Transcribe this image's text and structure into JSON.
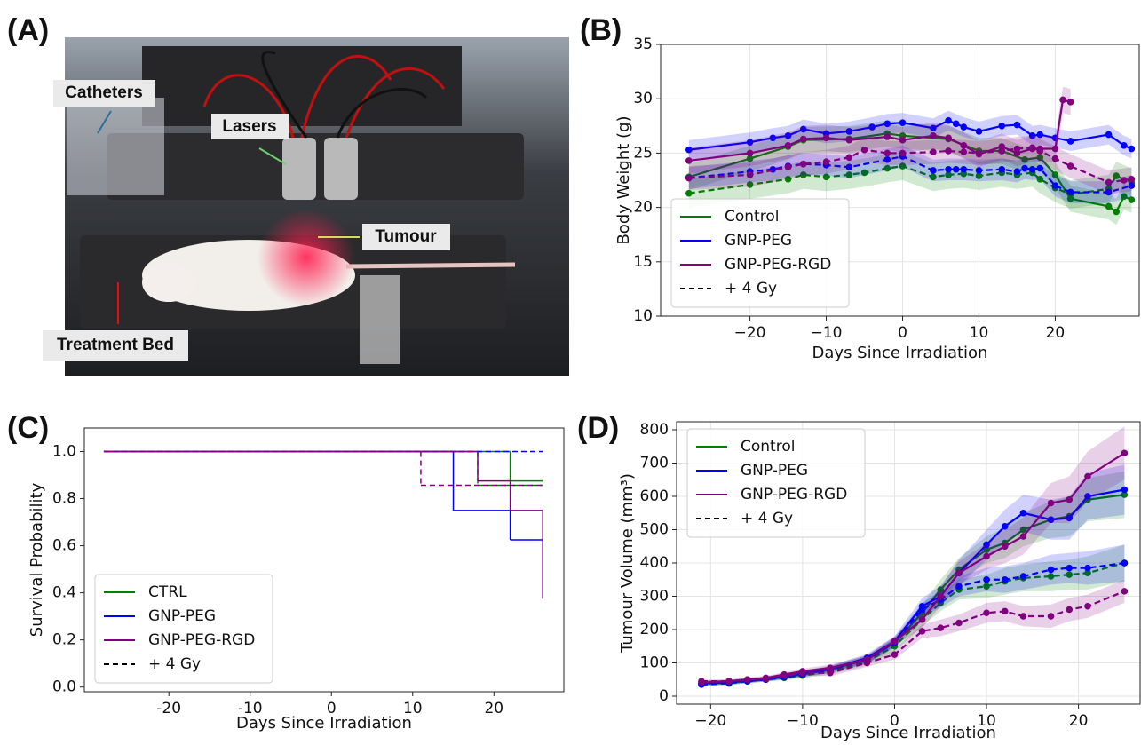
{
  "panel_labels": [
    "(A)",
    "(B)",
    "(C)",
    "(D)"
  ],
  "photo": {
    "labels": [
      "Catheters",
      "Lasers",
      "Tumour",
      "Treatment Bed"
    ]
  },
  "chart_data": [
    {
      "type": "line",
      "xlabel": "Days Since Irradiation",
      "ylabel": "Body Weight (g)",
      "xlim": [
        -31.7,
        31
      ],
      "ylim": [
        10,
        35
      ],
      "xticks": [
        {
          "value": -20,
          "label": "−20"
        },
        {
          "value": -10,
          "label": "−10"
        },
        0,
        10,
        20
      ],
      "yticks": [
        10,
        15,
        20,
        25,
        30,
        35
      ],
      "grid": true,
      "markers": true,
      "legend_loc": "lower left",
      "legend": [
        {
          "label": "Control",
          "color": "#008000",
          "dash": false
        },
        {
          "label": "GNP-PEG",
          "color": "#0000ff",
          "dash": false
        },
        {
          "label": "GNP-PEG-RGD",
          "color": "#800080",
          "dash": false
        },
        {
          "label": "+ 4 Gy",
          "color": "#000000",
          "dash": true
        }
      ],
      "series": [
        {
          "name": "Control",
          "color": "#008000",
          "dash": false,
          "error": 1.2,
          "x": [
            -28,
            -20,
            -15,
            -13,
            -7,
            -2,
            0,
            6,
            10,
            13,
            16,
            18,
            20,
            22,
            27,
            28,
            29,
            30
          ],
          "values": [
            22.8,
            24.5,
            25.6,
            26.2,
            26.3,
            26.8,
            26.6,
            26.3,
            25.2,
            25.2,
            24.4,
            24.6,
            23.0,
            20.8,
            20.1,
            19.6,
            21.0,
            20.7
          ]
        },
        {
          "name": "Control",
          "color": "#008000",
          "dash": true,
          "error": 1.3,
          "x": [
            -28,
            -20,
            -15,
            -13,
            -10,
            -7,
            -5,
            -2,
            0,
            4,
            6,
            8,
            10,
            13,
            15,
            17,
            18,
            20,
            22,
            27,
            28,
            30
          ],
          "values": [
            21.3,
            22.1,
            22.6,
            23.0,
            22.8,
            23.0,
            23.2,
            23.6,
            23.8,
            22.8,
            23.0,
            23.1,
            22.9,
            23.2,
            23.0,
            23.2,
            22.6,
            21.8,
            21.2,
            21.7,
            22.9,
            22.3
          ]
        },
        {
          "name": "GNP-PEG",
          "color": "#0000ff",
          "dash": false,
          "error": 0.9,
          "x": [
            -28,
            -20,
            -17,
            -15,
            -13,
            -10,
            -7,
            -4,
            -2,
            0,
            4,
            6,
            7,
            8,
            10,
            13,
            15,
            17,
            18,
            20,
            22,
            27,
            29,
            30
          ],
          "values": [
            25.3,
            26.0,
            26.4,
            26.6,
            27.2,
            26.8,
            27.0,
            27.4,
            27.7,
            27.8,
            27.3,
            28.0,
            27.7,
            27.4,
            27.0,
            27.5,
            27.6,
            26.6,
            26.7,
            26.4,
            26.1,
            26.7,
            25.7,
            25.4
          ]
        },
        {
          "name": "GNP-PEG",
          "color": "#0000ff",
          "dash": true,
          "error": 1.0,
          "x": [
            -28,
            -20,
            -17,
            -15,
            -13,
            -10,
            -7,
            -2,
            0,
            4,
            6,
            7,
            8,
            10,
            13,
            15,
            16,
            17,
            18,
            20,
            22,
            27,
            30
          ],
          "values": [
            22.7,
            23.3,
            23.5,
            23.8,
            24.0,
            23.9,
            23.7,
            24.4,
            24.7,
            23.4,
            23.5,
            23.5,
            23.5,
            23.4,
            23.5,
            23.3,
            23.6,
            23.5,
            23.6,
            22.0,
            21.4,
            21.4,
            22.0
          ]
        },
        {
          "name": "GNP-PEG-RGD",
          "color": "#800080",
          "dash": false,
          "error": 1.2,
          "x": [
            -28,
            -20,
            -15,
            -13,
            -10,
            -7,
            -2,
            0,
            4,
            6,
            8,
            10,
            13,
            15,
            17,
            18,
            20,
            21,
            22
          ],
          "values": [
            24.3,
            25.0,
            25.7,
            26.3,
            26.4,
            26.2,
            26.5,
            26.2,
            26.6,
            26.4,
            25.7,
            24.9,
            25.6,
            25.0,
            25.4,
            25.4,
            25.4,
            29.9,
            29.7
          ]
        },
        {
          "name": "GNP-PEG-RGD",
          "color": "#800080",
          "dash": true,
          "error": 1.1,
          "x": [
            -28,
            -20,
            -15,
            -13,
            -10,
            -7,
            -5,
            -2,
            0,
            4,
            6,
            8,
            10,
            13,
            15,
            17,
            18,
            20,
            22,
            27,
            29,
            30
          ],
          "values": [
            22.7,
            23.0,
            23.7,
            24.0,
            24.2,
            24.6,
            25.3,
            25.0,
            25.0,
            25.1,
            25.2,
            25.1,
            25.0,
            25.2,
            25.4,
            25.5,
            25.2,
            24.5,
            23.8,
            22.3,
            22.5,
            22.6
          ]
        }
      ]
    },
    {
      "type": "step",
      "xlabel": "Days Since Irradiation",
      "ylabel": "Survival Probability",
      "xlim": [
        -30.4,
        28.6
      ],
      "ylim": [
        -0.02,
        1.1
      ],
      "xticks": [
        -20,
        -10,
        0,
        10,
        20
      ],
      "yticks": [
        {
          "value": 0,
          "label": "0.0"
        },
        0.2,
        0.4,
        0.6,
        0.8,
        {
          "value": 1,
          "label": "1.0"
        }
      ],
      "grid": false,
      "markers": false,
      "legend_loc": "lower left",
      "legend": [
        {
          "label": "CTRL",
          "color": "#008000",
          "dash": false
        },
        {
          "label": "GNP-PEG",
          "color": "#0000ff",
          "dash": false
        },
        {
          "label": "GNP-PEG-RGD",
          "color": "#800080",
          "dash": false
        },
        {
          "label": "+ 4 Gy",
          "color": "#000000",
          "dash": true
        }
      ],
      "series": [
        {
          "name": "CTRL",
          "color": "#008000",
          "dash": false,
          "x": [
            -28,
            22,
            26
          ],
          "values": [
            1,
            0.875,
            0.875
          ]
        },
        {
          "name": "CTRL",
          "color": "#008000",
          "dash": true,
          "x": [
            -28,
            18,
            26
          ],
          "values": [
            1,
            0.857,
            0.857
          ]
        },
        {
          "name": "GNP-PEG",
          "color": "#0000ff",
          "dash": false,
          "x": [
            -28,
            15,
            22,
            26
          ],
          "values": [
            1,
            0.75,
            0.625,
            0.375
          ]
        },
        {
          "name": "GNP-PEG",
          "color": "#0000ff",
          "dash": true,
          "x": [
            -28,
            26
          ],
          "values": [
            1,
            1
          ]
        },
        {
          "name": "GNP-PEG-RGD",
          "color": "#800080",
          "dash": false,
          "x": [
            -28,
            18,
            22,
            26
          ],
          "values": [
            1,
            0.875,
            0.75,
            0.375
          ]
        },
        {
          "name": "GNP-PEG-RGD",
          "color": "#800080",
          "dash": true,
          "x": [
            -28,
            11,
            26
          ],
          "values": [
            1,
            0.857,
            0.857
          ]
        }
      ]
    },
    {
      "type": "line",
      "xlabel": "Days Since Irradiation",
      "ylabel": "Tumour Volume (mm³)",
      "xlim": [
        -23.7,
        26.7
      ],
      "ylim": [
        -24,
        824
      ],
      "xticks": [
        {
          "value": -20,
          "label": "−20"
        },
        {
          "value": -10,
          "label": "−10"
        },
        0,
        10,
        20
      ],
      "yticks": [
        0,
        100,
        200,
        300,
        400,
        500,
        600,
        700,
        800
      ],
      "grid": true,
      "markers": true,
      "legend_loc": "upper left",
      "legend": [
        {
          "label": "Control",
          "color": "#008000",
          "dash": false
        },
        {
          "label": "GNP-PEG",
          "color": "#0000ff",
          "dash": false
        },
        {
          "label": "GNP-PEG-RGD",
          "color": "#800080",
          "dash": false
        },
        {
          "label": "+ 4 Gy",
          "color": "#000000",
          "dash": true
        }
      ],
      "x": [
        -21,
        -18,
        -16,
        -14,
        -12,
        -10,
        -7,
        -3,
        0,
        3,
        5,
        7,
        10,
        12,
        14,
        17,
        19,
        21,
        25
      ],
      "series": [
        {
          "name": "Control",
          "color": "#008000",
          "dash": false,
          "values": [
            38,
            40,
            45,
            50,
            58,
            65,
            80,
            110,
            160,
            250,
            320,
            380,
            440,
            460,
            500,
            530,
            540,
            590,
            605
          ],
          "error": [
            5,
            5,
            6,
            6,
            7,
            8,
            10,
            12,
            15,
            25,
            30,
            35,
            40,
            45,
            50,
            55,
            60,
            65,
            70
          ]
        },
        {
          "name": "Control",
          "color": "#008000",
          "dash": true,
          "values": [
            35,
            38,
            45,
            50,
            55,
            62,
            75,
            105,
            150,
            230,
            280,
            320,
            330,
            345,
            355,
            360,
            365,
            370,
            400
          ],
          "error": [
            5,
            5,
            6,
            6,
            7,
            8,
            10,
            12,
            15,
            20,
            25,
            30,
            35,
            40,
            40,
            45,
            45,
            50,
            55
          ]
        },
        {
          "name": "GNP-PEG",
          "color": "#0000ff",
          "dash": false,
          "values": [
            38,
            42,
            48,
            52,
            60,
            68,
            82,
            115,
            165,
            270,
            300,
            370,
            455,
            510,
            550,
            530,
            535,
            600,
            620
          ],
          "error": [
            5,
            5,
            6,
            6,
            7,
            8,
            10,
            12,
            15,
            25,
            30,
            40,
            45,
            50,
            55,
            60,
            65,
            70,
            75
          ]
        },
        {
          "name": "GNP-PEG",
          "color": "#0000ff",
          "dash": true,
          "values": [
            35,
            40,
            45,
            50,
            57,
            65,
            80,
            110,
            160,
            260,
            290,
            330,
            350,
            350,
            360,
            380,
            385,
            385,
            400
          ],
          "error": [
            5,
            5,
            6,
            6,
            7,
            8,
            10,
            12,
            15,
            20,
            25,
            30,
            35,
            40,
            40,
            45,
            45,
            50,
            55
          ]
        },
        {
          "name": "GNP-PEG-RGD",
          "color": "#800080",
          "dash": false,
          "values": [
            42,
            45,
            50,
            55,
            65,
            75,
            85,
            110,
            165,
            230,
            300,
            370,
            420,
            450,
            480,
            580,
            590,
            660,
            730
          ],
          "error": [
            5,
            5,
            6,
            6,
            7,
            8,
            10,
            12,
            15,
            25,
            30,
            35,
            40,
            50,
            55,
            60,
            70,
            75,
            80
          ]
        },
        {
          "name": "GNP-PEG-RGD",
          "color": "#800080",
          "dash": true,
          "values": [
            45,
            45,
            50,
            52,
            62,
            70,
            70,
            100,
            125,
            195,
            205,
            220,
            250,
            255,
            240,
            240,
            260,
            270,
            315
          ],
          "error": [
            5,
            5,
            6,
            6,
            7,
            8,
            10,
            12,
            15,
            20,
            25,
            25,
            30,
            30,
            30,
            35,
            35,
            35,
            35
          ]
        }
      ]
    }
  ]
}
